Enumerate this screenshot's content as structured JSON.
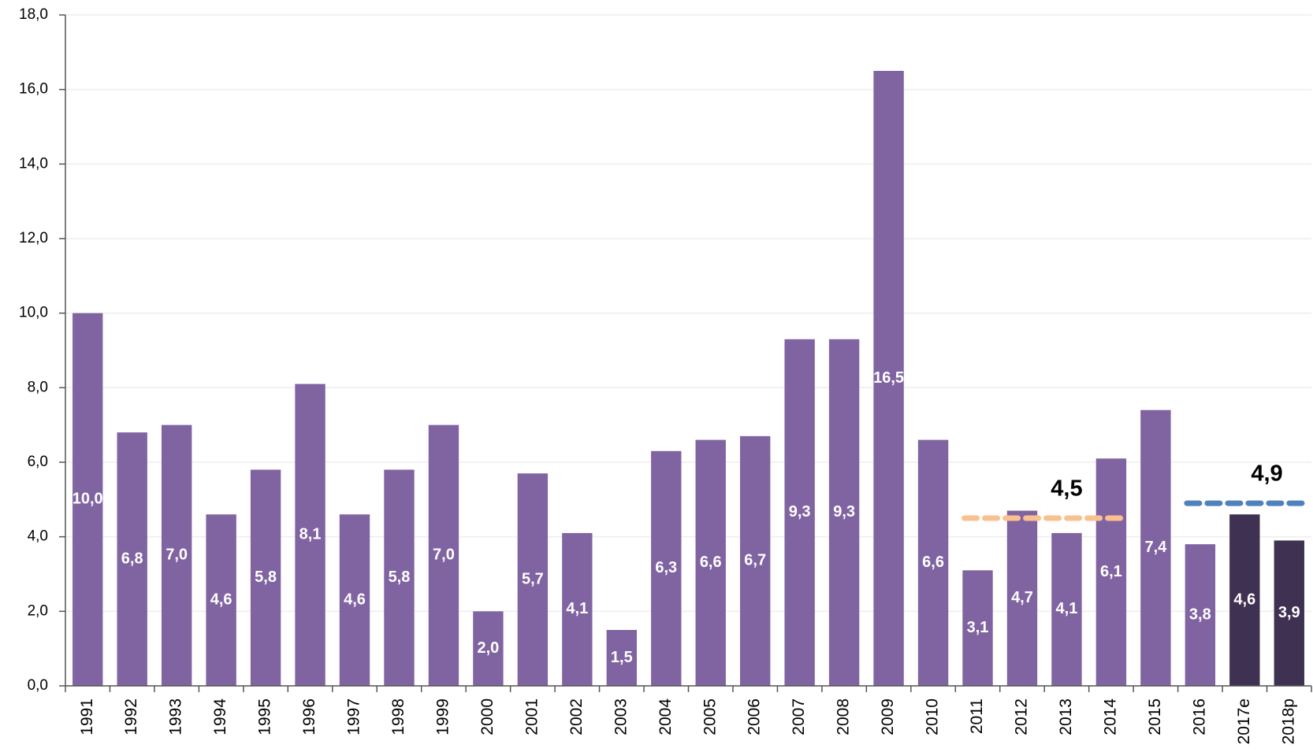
{
  "chart_data": {
    "type": "bar",
    "categories": [
      "1991",
      "1992",
      "1993",
      "1994",
      "1995",
      "1996",
      "1997",
      "1998",
      "1999",
      "2000",
      "2001",
      "2002",
      "2003",
      "2004",
      "2005",
      "2006",
      "2007",
      "2008",
      "2009",
      "2010",
      "2011",
      "2012",
      "2013",
      "2014",
      "2015",
      "2016",
      "2017e",
      "2018p"
    ],
    "values": [
      10.0,
      6.8,
      7.0,
      4.6,
      5.8,
      8.1,
      4.6,
      5.8,
      7.0,
      2.0,
      5.7,
      4.1,
      1.5,
      6.3,
      6.6,
      6.7,
      9.3,
      9.3,
      16.5,
      6.6,
      3.1,
      4.7,
      4.1,
      6.1,
      7.4,
      3.8,
      4.6,
      3.9
    ],
    "value_labels": [
      "10,0",
      "6,8",
      "7,0",
      "4,6",
      "5,8",
      "8,1",
      "4,6",
      "5,8",
      "7,0",
      "2,0",
      "5,7",
      "4,1",
      "1,5",
      "6,3",
      "6,6",
      "6,7",
      "9,3",
      "9,3",
      "16,5",
      "6,6",
      "3,1",
      "4,7",
      "4,1",
      "6,1",
      "7,4",
      "3,8",
      "4,6",
      "3,9"
    ],
    "colors": [
      "#8064a2",
      "#8064a2",
      "#8064a2",
      "#8064a2",
      "#8064a2",
      "#8064a2",
      "#8064a2",
      "#8064a2",
      "#8064a2",
      "#8064a2",
      "#8064a2",
      "#8064a2",
      "#8064a2",
      "#8064a2",
      "#8064a2",
      "#8064a2",
      "#8064a2",
      "#8064a2",
      "#8064a2",
      "#8064a2",
      "#8064a2",
      "#8064a2",
      "#8064a2",
      "#8064a2",
      "#8064a2",
      "#8064a2",
      "#3f3151",
      "#3f3151"
    ],
    "ylim": [
      0,
      18
    ],
    "yticks": [
      {
        "value": 0,
        "label": "0,0"
      },
      {
        "value": 2,
        "label": "2,0"
      },
      {
        "value": 4,
        "label": "4,0"
      },
      {
        "value": 6,
        "label": "6,0"
      },
      {
        "value": 8,
        "label": "8,0"
      },
      {
        "value": 10,
        "label": "10,0"
      },
      {
        "value": 12,
        "label": "12,0"
      },
      {
        "value": 14,
        "label": "14,0"
      },
      {
        "value": 16,
        "label": "16,0"
      },
      {
        "value": 18,
        "label": "18,0"
      }
    ],
    "grid": true,
    "reference_lines": [
      {
        "value": 4.5,
        "label": "4,5",
        "color": "#fac090",
        "label_color": "#f79646",
        "from": "2011",
        "to": "2014"
      },
      {
        "value": 4.9,
        "label": "4,9",
        "color": "#4f81bd",
        "label_color": "#4f81bd",
        "from": "2016",
        "to": "2018p"
      }
    ]
  }
}
